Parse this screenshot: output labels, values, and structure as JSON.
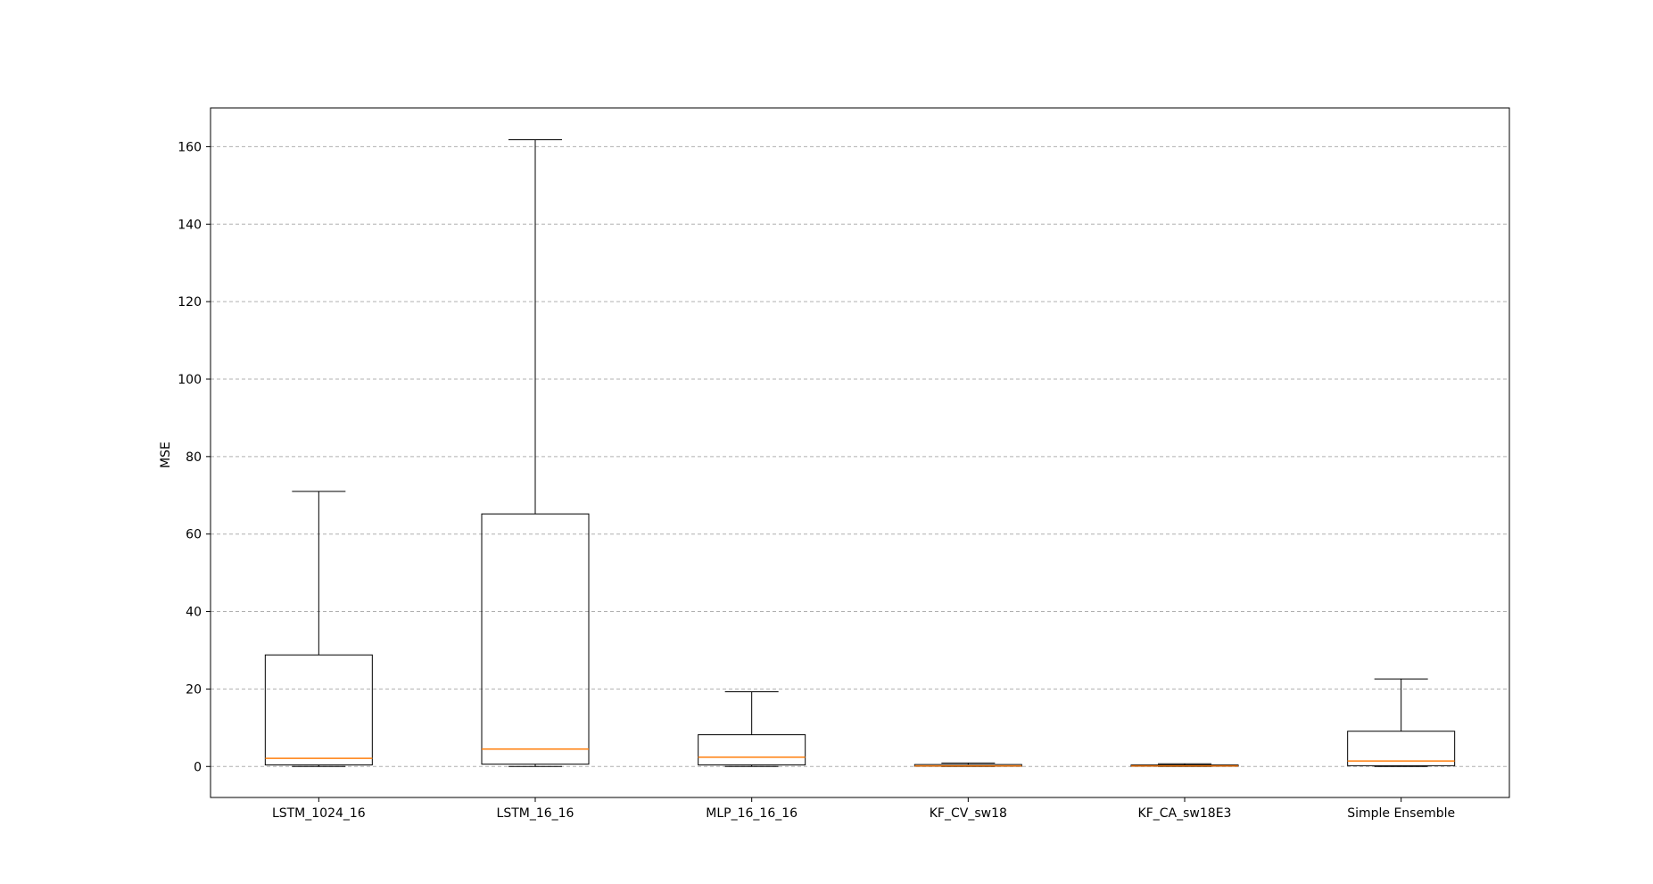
{
  "chart_data": {
    "type": "box",
    "title": "",
    "xlabel": "",
    "ylabel": "MSE",
    "ylim": [
      -8,
      170
    ],
    "yticks": [
      0,
      20,
      40,
      60,
      80,
      100,
      120,
      140,
      160
    ],
    "ytick_labels": [
      "0",
      "20",
      "40",
      "60",
      "80",
      "100",
      "120",
      "140",
      "160"
    ],
    "grid": {
      "axis": "y",
      "style": "dashed",
      "color": "#b0b0b0"
    },
    "legend": null,
    "colors": {
      "box": "#000000",
      "median": "#ff7f0e",
      "grid": "#b0b0b0"
    },
    "categories": [
      "LSTM_1024_16",
      "LSTM_16_16",
      "MLP_16_16_16",
      "KF_CV_sw18",
      "KF_CA_sw18E3",
      "Simple Ensemble"
    ],
    "boxes": [
      {
        "label": "LSTM_1024_16",
        "whislo": 0.0,
        "q1": 0.4,
        "median": 2.1,
        "q3": 28.8,
        "whishi": 71.0
      },
      {
        "label": "LSTM_16_16",
        "whislo": 0.0,
        "q1": 0.6,
        "median": 4.5,
        "q3": 65.2,
        "whishi": 161.8
      },
      {
        "label": "MLP_16_16_16",
        "whislo": 0.0,
        "q1": 0.4,
        "median": 2.4,
        "q3": 8.2,
        "whishi": 19.3
      },
      {
        "label": "KF_CV_sw18",
        "whislo": 0.0,
        "q1": 0.05,
        "median": 0.15,
        "q3": 0.5,
        "whishi": 0.9
      },
      {
        "label": "KF_CA_sw18E3",
        "whislo": 0.0,
        "q1": 0.05,
        "median": 0.15,
        "q3": 0.4,
        "whishi": 0.7
      },
      {
        "label": "Simple Ensemble",
        "whislo": 0.0,
        "q1": 0.2,
        "median": 1.4,
        "q3": 9.1,
        "whishi": 22.6
      }
    ]
  }
}
